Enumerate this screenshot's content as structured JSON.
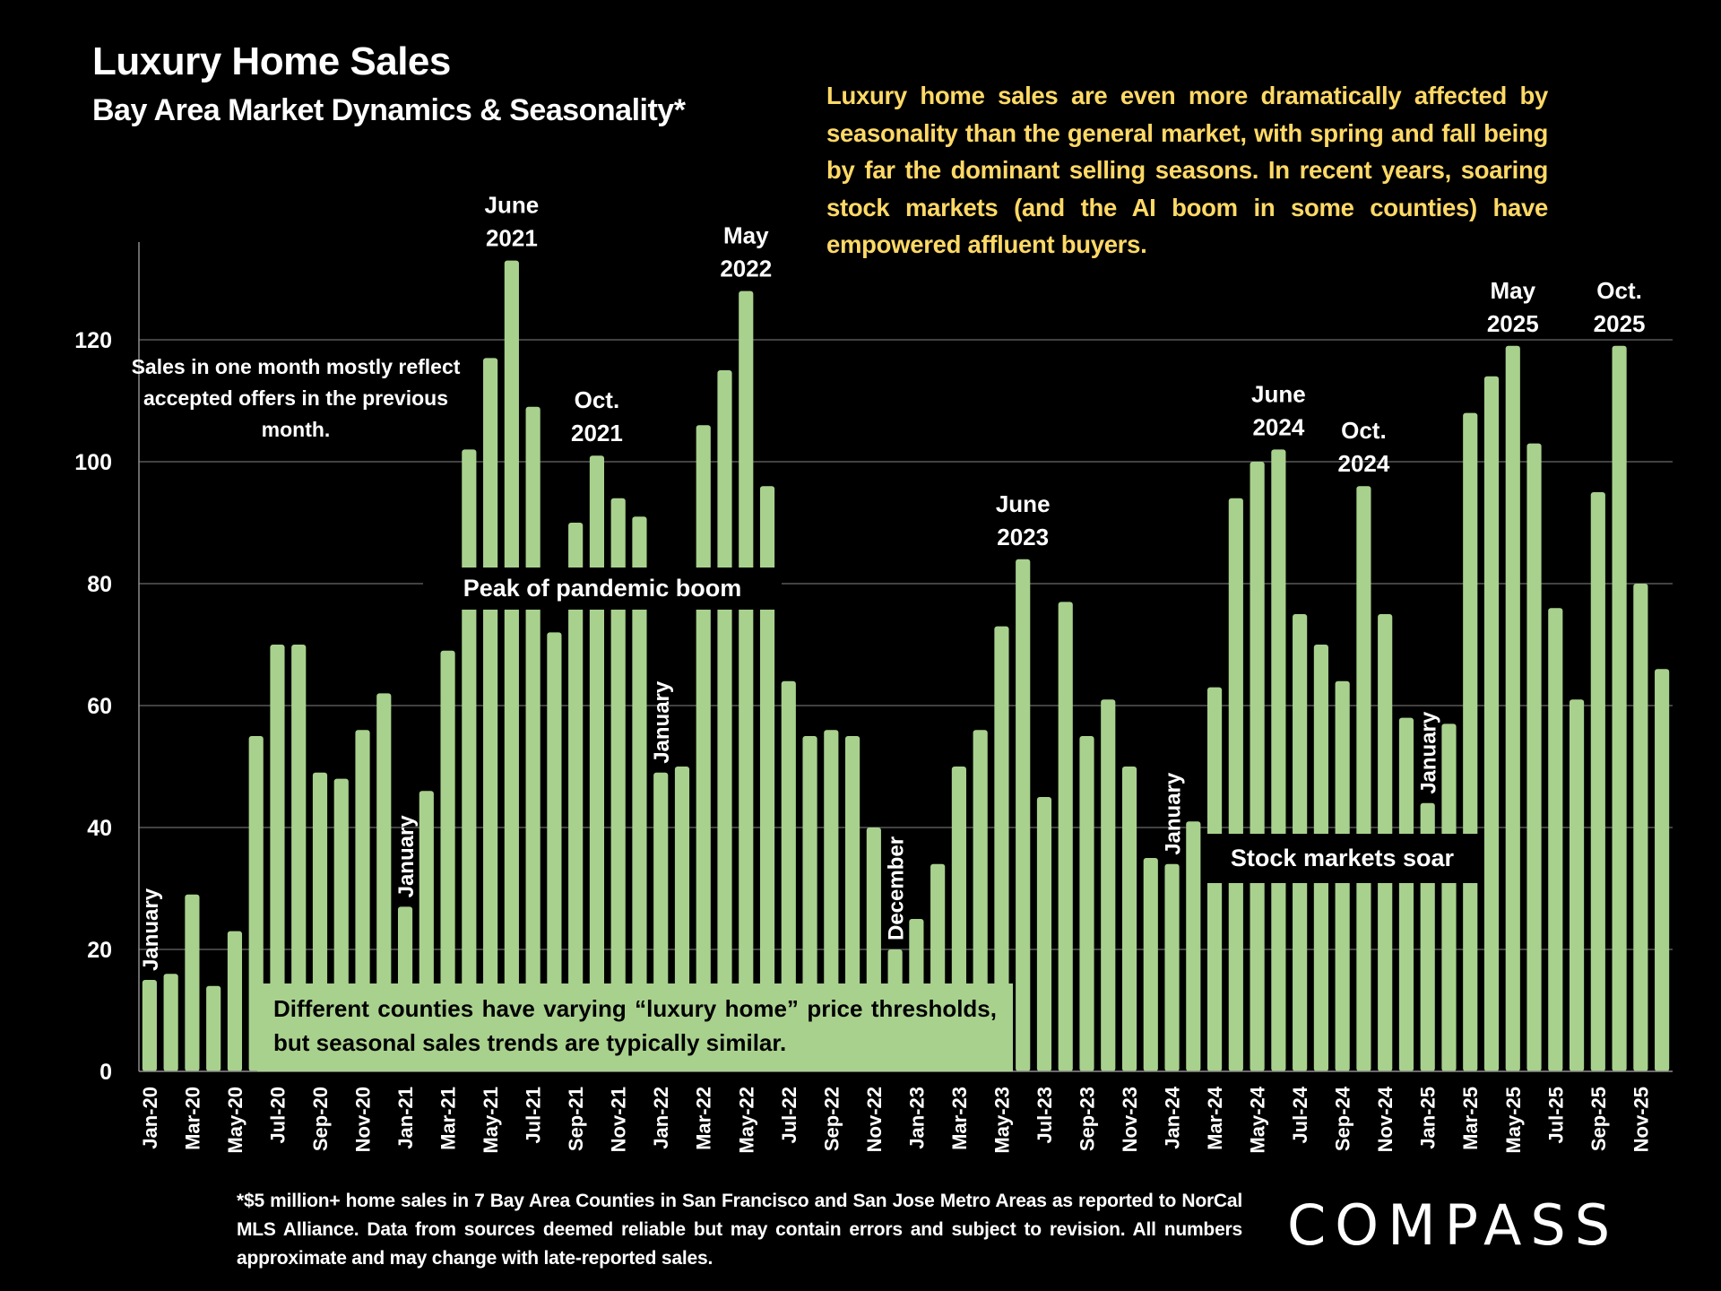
{
  "header": {
    "title": "Luxury Home Sales",
    "subtitle": "Bay Area Market Dynamics & Seasonality*"
  },
  "commentary": "Luxury home sales are even more dramatically affected by seasonality than the general market, with spring and fall being by far the dominant selling seasons. In recent years, soaring stock markets (and the AI boom in some counties) have empowered affluent buyers.",
  "notes": {
    "offers_note": "Sales in one month mostly reflect accepted offers in the previous month.",
    "counties_note": "Different counties have varying “luxury home” price thresholds, but seasonal sales trends are typically similar.",
    "peak_band": "Peak of pandemic boom",
    "stock_band": "Stock markets soar"
  },
  "footnote": "*$5 million+ home sales in 7 Bay Area Counties in San Francisco and San Jose Metro Areas as reported to NorCal MLS Alliance.  Data from sources deemed reliable but may contain errors and subject to revision. All numbers approximate and may change with late-reported sales.",
  "logo": "COMPASS",
  "colors": {
    "bar": "#a9d18e",
    "commentary": "#ffd966",
    "background": "#000000",
    "gridline": "#595959"
  },
  "chart_data": {
    "type": "bar",
    "title": "Luxury Home Sales",
    "subtitle": "Bay Area Market Dynamics & Seasonality*",
    "xlabel": "",
    "ylabel": "",
    "ylim": [
      0,
      135
    ],
    "yticks": [
      0,
      20,
      40,
      60,
      80,
      100,
      120
    ],
    "grid": true,
    "legend": "none",
    "categories": [
      "Jan-20",
      "Feb-20",
      "Mar-20",
      "Apr-20",
      "May-20",
      "Jun-20",
      "Jul-20",
      "Aug-20",
      "Sep-20",
      "Oct-20",
      "Nov-20",
      "Dec-20",
      "Jan-21",
      "Feb-21",
      "Mar-21",
      "Apr-21",
      "May-21",
      "Jun-21",
      "Jul-21",
      "Aug-21",
      "Sep-21",
      "Oct-21",
      "Nov-21",
      "Dec-21",
      "Jan-22",
      "Feb-22",
      "Mar-22",
      "Apr-22",
      "May-22",
      "Jun-22",
      "Jul-22",
      "Aug-22",
      "Sep-22",
      "Oct-22",
      "Nov-22",
      "Dec-22",
      "Jan-23",
      "Feb-23",
      "Mar-23",
      "Apr-23",
      "May-23",
      "Jun-23",
      "Jul-23",
      "Aug-23",
      "Sep-23",
      "Oct-23",
      "Nov-23",
      "Dec-23",
      "Jan-24",
      "Feb-24",
      "Mar-24",
      "Apr-24",
      "May-24",
      "Jun-24",
      "Jul-24",
      "Aug-24",
      "Sep-24",
      "Oct-24",
      "Nov-24",
      "Dec-24",
      "Jan-25",
      "Feb-25",
      "Mar-25",
      "Apr-25",
      "May-25",
      "Jun-25",
      "Jul-25",
      "Aug-25",
      "Sep-25",
      "Oct-25",
      "Nov-25",
      "Dec-25"
    ],
    "xtick_labels": [
      "Jan-20",
      "Mar-20",
      "May-20",
      "Jul-20",
      "Sep-20",
      "Nov-20",
      "Jan-21",
      "Mar-21",
      "May-21",
      "Jul-21",
      "Sep-21",
      "Nov-21",
      "Jan-22",
      "Mar-22",
      "May-22",
      "Jul-22",
      "Sep-22",
      "Nov-22",
      "Jan-23",
      "Mar-23",
      "May-23",
      "Jul-23",
      "Sep-23",
      "Nov-23",
      "Jan-24",
      "Mar-24",
      "May-24",
      "Jul-24",
      "Sep-24",
      "Nov-24",
      "Jan-25",
      "Mar-25",
      "May-25",
      "Jul-25",
      "Sep-25",
      "Nov-25"
    ],
    "series": [
      {
        "name": "Luxury home sales",
        "values": [
          15,
          16,
          29,
          14,
          23,
          55,
          70,
          70,
          49,
          48,
          56,
          62,
          27,
          46,
          69,
          102,
          117,
          133,
          109,
          72,
          90,
          101,
          94,
          91,
          49,
          50,
          106,
          115,
          128,
          96,
          64,
          55,
          56,
          55,
          40,
          20,
          25,
          34,
          50,
          56,
          73,
          84,
          45,
          77,
          55,
          61,
          50,
          35,
          34,
          41,
          63,
          94,
          100,
          102,
          75,
          70,
          64,
          96,
          75,
          58,
          44,
          57,
          108,
          114,
          119,
          103,
          76,
          61,
          95,
          119,
          80,
          66
        ]
      }
    ],
    "annotations": [
      {
        "text": "January",
        "at": "Jan-20",
        "rotated": true
      },
      {
        "text": "January",
        "at": "Jan-21",
        "rotated": true
      },
      {
        "text": "June 2021",
        "at": "Jun-21"
      },
      {
        "text": "Oct. 2021",
        "at": "Oct-21"
      },
      {
        "text": "January",
        "at": "Jan-22",
        "rotated": true
      },
      {
        "text": "May 2022",
        "at": "May-22"
      },
      {
        "text": "December",
        "at": "Dec-22",
        "rotated": true
      },
      {
        "text": "June 2023",
        "at": "Jun-23"
      },
      {
        "text": "January",
        "at": "Jan-24",
        "rotated": true
      },
      {
        "text": "June 2024",
        "at": "Jun-24"
      },
      {
        "text": "Oct. 2024",
        "at": "Oct-24"
      },
      {
        "text": "January",
        "at": "Jan-25",
        "rotated": true
      },
      {
        "text": "May 2025",
        "at": "May-25"
      },
      {
        "text": "Oct. 2025",
        "at": "Oct-25"
      }
    ]
  }
}
